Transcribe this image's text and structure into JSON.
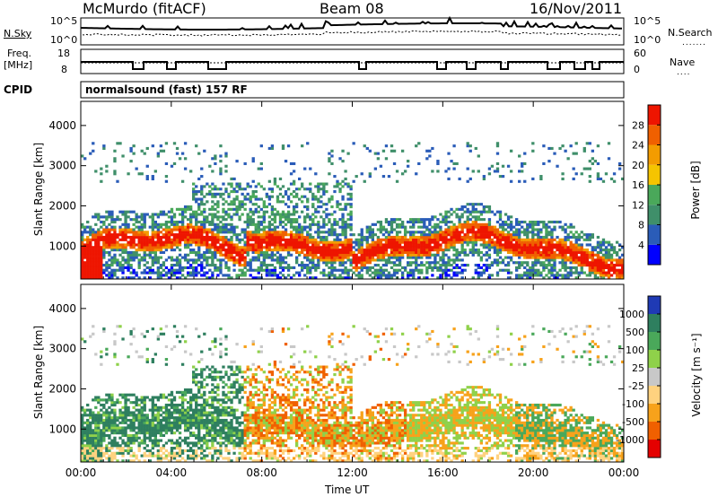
{
  "header": {
    "station": "McMurdo (fitACF)",
    "beam": "Beam 08",
    "date": "16/Nov/2011"
  },
  "panels": {
    "sky": {
      "label": "N.Sky",
      "left_ticks": [
        "10^5",
        "10^0"
      ],
      "right_label": "N.Search",
      "right_ticks": [
        "10^5",
        "10^0"
      ]
    },
    "freq": {
      "label_line1": "Freq.",
      "label_line2": "[MHz]",
      "left_ticks": [
        "18",
        "8"
      ],
      "right_label": "Nave",
      "right_ticks": [
        "60",
        "0"
      ]
    },
    "cpid": {
      "label": "CPID",
      "text": "normalsound (fast) 157 RF"
    }
  },
  "colors": {
    "power_scale": [
      "#0000ff",
      "#2a5cb8",
      "#3f8f6a",
      "#4aa85a",
      "#f5c400",
      "#f39c00",
      "#f06000",
      "#ee1500"
    ],
    "velocity_scale": [
      "#1f3ab5",
      "#2e7f5f",
      "#4aa85a",
      "#8fd14a",
      "#c8c8c8",
      "#ffd27f",
      "#f7a21b",
      "#f06000",
      "#e40000"
    ]
  },
  "chart_data": [
    {
      "type": "heatmap",
      "title": "Power",
      "ylabel": "Slant Range [km]",
      "xlabel": "Time UT",
      "x_ticks": [
        "00:00",
        "04:00",
        "08:00",
        "12:00",
        "16:00",
        "20:00",
        "00:00"
      ],
      "y_ticks": [
        "1000",
        "2000",
        "3000",
        "4000"
      ],
      "ylim": [
        180,
        4600
      ],
      "colorbar": {
        "label": "Power [dB]",
        "ticks": [
          "28",
          "24",
          "20",
          "16",
          "12",
          "8",
          "4"
        ]
      }
    },
    {
      "type": "heatmap",
      "title": "Velocity",
      "ylabel": "Slant Range [km]",
      "xlabel": "Time UT",
      "x_ticks": [
        "00:00",
        "04:00",
        "08:00",
        "12:00",
        "16:00",
        "20:00",
        "00:00"
      ],
      "y_ticks": [
        "1000",
        "2000",
        "3000",
        "4000"
      ],
      "ylim": [
        180,
        4600
      ],
      "colorbar": {
        "label": "Velocity [m s⁻¹]",
        "ticks": [
          "1000",
          "500",
          "100",
          "25",
          "-25",
          "-100",
          "-500",
          "-1000"
        ]
      }
    }
  ]
}
